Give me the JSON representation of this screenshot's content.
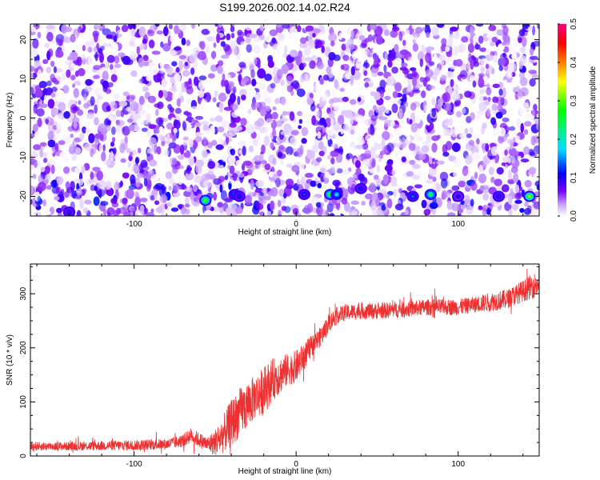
{
  "title": "S199.2026.002.14.02.R24",
  "chart_data": [
    {
      "type": "heatmap",
      "xlabel": "Height of straight line (km)",
      "ylabel": "Frequency (Hz)",
      "xlim": [
        -164,
        150
      ],
      "ylim": [
        -25,
        24
      ],
      "x_ticks": [
        -100,
        0,
        100
      ],
      "x_tick_labels": [
        "-100",
        "0",
        "100"
      ],
      "y_ticks": [
        20,
        10,
        0,
        -10,
        -20
      ],
      "y_tick_labels": [
        "20",
        "10",
        "0",
        "-10",
        "-20"
      ],
      "colorbar": {
        "label": "Normalized spectral amplitude",
        "range": [
          0.0,
          0.5
        ],
        "ticks": [
          0.0,
          0.1,
          0.2,
          0.3,
          0.4,
          0.5
        ],
        "tick_labels": [
          "0.0",
          "0.1",
          "0.2",
          "0.3",
          "0.4",
          "0.5"
        ],
        "colors": [
          "#ffffff",
          "#7a00ff",
          "#0000ff",
          "#00e0ff",
          "#00ff00",
          "#ffff00",
          "#ff7f00",
          "#ff0000",
          "#ff007f"
        ]
      },
      "description_values": {
        "background_amplitude_range": [
          0.0,
          0.1
        ],
        "band_frequency_hz": -20,
        "band_peaks": [
          {
            "x": -56,
            "y": -21,
            "amp": 0.3
          },
          {
            "x": -38,
            "y": -19.5,
            "amp": 0.15
          },
          {
            "x": -35,
            "y": -20,
            "amp": 0.12
          },
          {
            "x": 5,
            "y": -19.5,
            "amp": 0.13
          },
          {
            "x": 21,
            "y": -19.5,
            "amp": 0.28
          },
          {
            "x": 25,
            "y": -19.5,
            "amp": 0.18
          },
          {
            "x": 40,
            "y": -18,
            "amp": 0.12
          },
          {
            "x": 83,
            "y": -19.5,
            "amp": 0.25
          },
          {
            "x": 72,
            "y": -20,
            "amp": 0.14
          },
          {
            "x": 100,
            "y": -20,
            "amp": 0.11
          },
          {
            "x": 125,
            "y": -20,
            "amp": 0.12
          },
          {
            "x": 144,
            "y": -20,
            "amp": 0.32
          },
          {
            "x": -140,
            "y": -24,
            "amp": 0.12
          }
        ]
      }
    },
    {
      "type": "line",
      "xlabel": "Height of straight line (km)",
      "ylabel": "SNR (10 * v/v)",
      "xlim": [
        -164,
        150
      ],
      "ylim": [
        0,
        355
      ],
      "x_ticks": [
        -100,
        0,
        100
      ],
      "x_tick_labels": [
        "-100",
        "0",
        "100"
      ],
      "y_ticks": [
        0,
        100,
        200,
        300
      ],
      "y_tick_labels": [
        "0",
        "100",
        "200",
        "300"
      ],
      "series": [
        {
          "name": "SNR",
          "color": "#ee3030",
          "x": [
            -164,
            -140,
            -120,
            -100,
            -80,
            -70,
            -65,
            -60,
            -55,
            -50,
            -45,
            -40,
            -35,
            -30,
            -25,
            -20,
            -15,
            -10,
            -5,
            0,
            5,
            10,
            15,
            20,
            25,
            30,
            40,
            50,
            60,
            70,
            80,
            90,
            100,
            110,
            120,
            130,
            140,
            150
          ],
          "mean": [
            18,
            18,
            19,
            20,
            22,
            28,
            38,
            30,
            22,
            25,
            40,
            60,
            80,
            95,
            110,
            120,
            140,
            150,
            160,
            165,
            185,
            205,
            220,
            245,
            260,
            265,
            268,
            268,
            270,
            272,
            275,
            275,
            275,
            280,
            285,
            290,
            305,
            320
          ],
          "noise": [
            8,
            8,
            9,
            10,
            10,
            12,
            14,
            14,
            14,
            25,
            35,
            45,
            45,
            45,
            40,
            45,
            40,
            35,
            30,
            30,
            25,
            20,
            18,
            18,
            15,
            15,
            15,
            15,
            15,
            15,
            15,
            15,
            15,
            15,
            18,
            18,
            20,
            25
          ]
        }
      ]
    }
  ]
}
